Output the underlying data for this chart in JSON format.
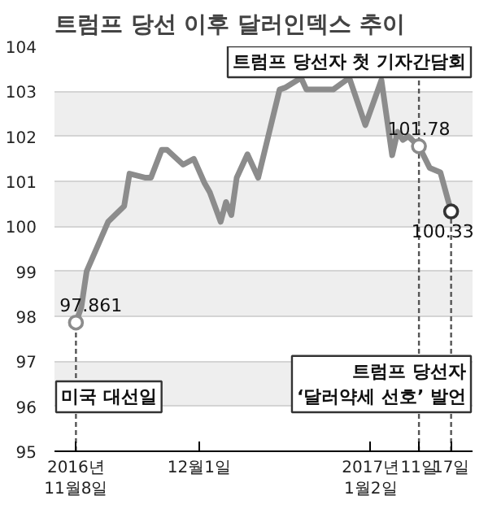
{
  "chart_data": {
    "type": "line",
    "title": "트럼프 당선 이후 달러인덱스 추이",
    "x": [
      "2016-11-08",
      "2016-11-09",
      "2016-11-10",
      "2016-11-14",
      "2016-11-17",
      "2016-11-18",
      "2016-11-21",
      "2016-11-22",
      "2016-11-24",
      "2016-11-25",
      "2016-11-28",
      "2016-11-30",
      "2016-12-02",
      "2016-12-03",
      "2016-12-05",
      "2016-12-06",
      "2016-12-07",
      "2016-12-08",
      "2016-12-10",
      "2016-12-12",
      "2016-12-16",
      "2016-12-17",
      "2016-12-20",
      "2016-12-21",
      "2016-12-24",
      "2016-12-26",
      "2016-12-29",
      "2017-01-01",
      "2017-01-04",
      "2017-01-06",
      "2017-01-07",
      "2017-01-08",
      "2017-01-09",
      "2017-01-11",
      "2017-01-13",
      "2017-01-15",
      "2017-01-17"
    ],
    "series": [
      {
        "color": "#8c8c8c",
        "values": [
          97.861,
          98.2,
          99.0,
          100.1,
          100.45,
          101.17,
          101.08,
          101.08,
          101.7,
          101.7,
          101.37,
          101.5,
          100.96,
          100.75,
          100.1,
          100.54,
          100.25,
          101.08,
          101.6,
          101.08,
          103.04,
          103.08,
          103.3,
          103.04,
          103.04,
          103.04,
          103.3,
          102.25,
          103.25,
          101.58,
          102.1,
          101.92,
          102.0,
          101.78,
          101.3,
          101.2,
          100.33
        ],
        "value_labels": [
          "97.861",
          null,
          null,
          null,
          null,
          null,
          null,
          null,
          null,
          null,
          null,
          null,
          null,
          null,
          null,
          null,
          null,
          null,
          null,
          null,
          null,
          null,
          null,
          null,
          null,
          null,
          null,
          null,
          null,
          null,
          null,
          null,
          null,
          "101.78",
          null,
          null,
          "100.33"
        ]
      }
    ],
    "xlim": [
      "2016-11-04",
      "2017-01-21"
    ],
    "xticks": [
      {
        "value": "2016-11-08",
        "label": "2016년\n11월8일"
      },
      {
        "value": "2016-12-01",
        "label": "12월1일"
      },
      {
        "value": "2017-01-02",
        "label": "2017년\n1월2일"
      },
      {
        "value": "2017-01-11",
        "label": "11일"
      },
      {
        "value": "2017-01-17",
        "label": "17일"
      }
    ],
    "ylim": [
      95,
      104
    ],
    "yticks": [
      95,
      96,
      97,
      98,
      99,
      100,
      101,
      102,
      103,
      104
    ],
    "grid": "y",
    "ref_lines": [
      {
        "axis": "x",
        "value": "2016-11-08",
        "label": "미국 대선일",
        "line_style": "dashed",
        "color": "#555555"
      },
      {
        "axis": "x",
        "value": "2017-01-11",
        "label": "트럼프 당선자 첫 기자간담회",
        "line_style": "dashed",
        "color": "#555555"
      },
      {
        "axis": "x",
        "value": "2017-01-17",
        "label": "트럼프 당선자\n‘달러약세 선호’ 발언",
        "line_style": "dashed",
        "color": "#555555"
      }
    ]
  }
}
